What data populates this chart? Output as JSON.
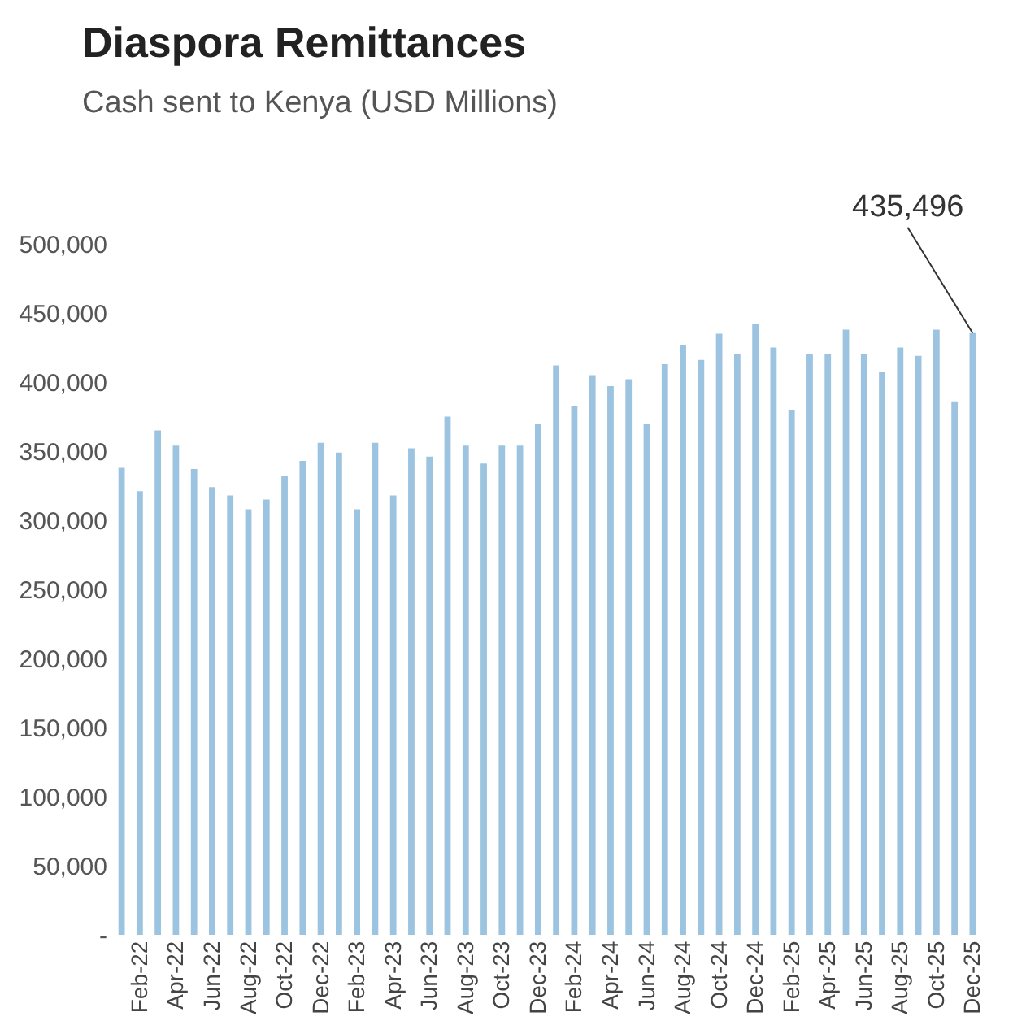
{
  "chart_data": {
    "type": "bar",
    "title": "Diaspora Remittances",
    "subtitle": "Cash sent to Kenya (USD Millions)",
    "categories": [
      null,
      "Feb-22",
      null,
      "Apr-22",
      null,
      "Jun-22",
      null,
      "Aug-22",
      null,
      "Oct-22",
      null,
      "Dec-22",
      null,
      "Feb-23",
      null,
      "Apr-23",
      null,
      "Jun-23",
      null,
      "Aug-23",
      null,
      "Oct-23",
      null,
      "Dec-23",
      null,
      "Feb-24",
      null,
      "Apr-24",
      null,
      "Jun-24",
      null,
      "Aug-24",
      null,
      "Oct-24",
      null,
      "Dec-24",
      null,
      "Feb-25",
      null,
      "Apr-25",
      null,
      "Jun-25",
      null,
      "Aug-25",
      null,
      "Oct-25",
      null,
      "Dec-25"
    ],
    "values": [
      338000,
      321000,
      365000,
      354000,
      337000,
      324000,
      318000,
      308000,
      315000,
      332000,
      343000,
      356000,
      349000,
      308000,
      356000,
      318000,
      352000,
      346000,
      375000,
      354000,
      341000,
      354000,
      354000,
      370000,
      412000,
      383000,
      405000,
      397000,
      402000,
      370000,
      413000,
      427000,
      416000,
      435000,
      420000,
      442000,
      425000,
      380000,
      420000,
      420000,
      438000,
      420000,
      407000,
      425000,
      419000,
      438000,
      386000,
      435496
    ],
    "color": "#9cc3e0",
    "ylim": [
      0,
      500000
    ],
    "yticks": [
      {
        "value": 0,
        "label": "-"
      },
      {
        "value": 50000,
        "label": "50,000"
      },
      {
        "value": 100000,
        "label": "100,000"
      },
      {
        "value": 150000,
        "label": "150,000"
      },
      {
        "value": 200000,
        "label": "200,000"
      },
      {
        "value": 250000,
        "label": "250,000"
      },
      {
        "value": 300000,
        "label": "300,000"
      },
      {
        "value": 350000,
        "label": "350,000"
      },
      {
        "value": 400000,
        "label": "400,000"
      },
      {
        "value": 450000,
        "label": "450,000"
      },
      {
        "value": 500000,
        "label": "500,000"
      }
    ],
    "annotations": [
      {
        "text": "435,496",
        "x": "Dec-25",
        "y": 435496
      }
    ]
  }
}
